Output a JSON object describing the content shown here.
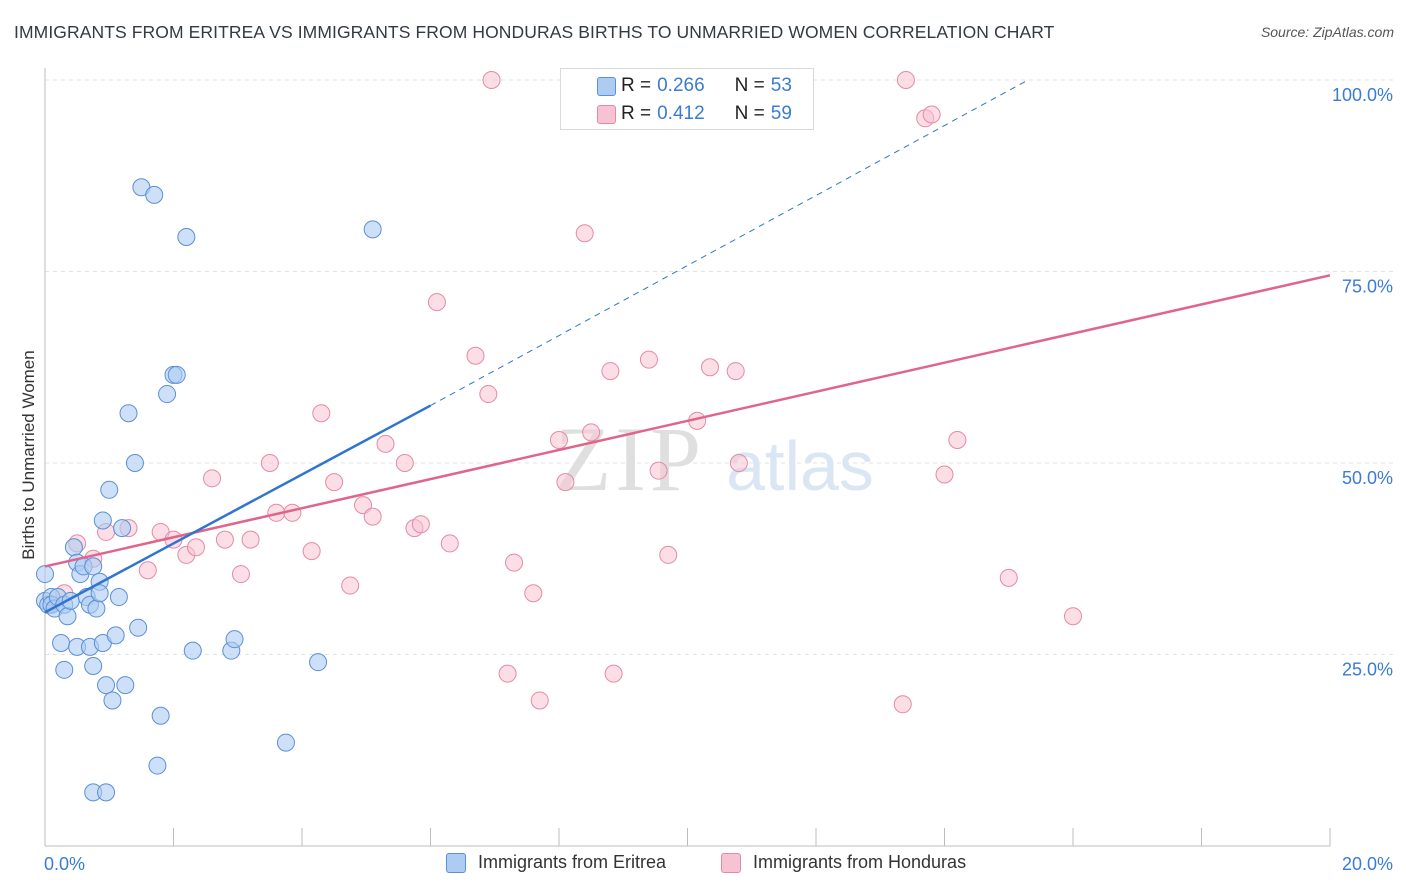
{
  "header": {
    "title": "IMMIGRANTS FROM ERITREA VS IMMIGRANTS FROM HONDURAS BIRTHS TO UNMARRIED WOMEN CORRELATION CHART",
    "source": "Source: ZipAtlas.com"
  },
  "watermark": {
    "zip": "ZIP",
    "atlas": "atlas"
  },
  "stats": [
    {
      "r_label": "R =",
      "r_value": "0.266",
      "n_label": "N =",
      "n_value": "53"
    },
    {
      "r_label": "R =",
      "r_value": "0.412",
      "n_label": "N =",
      "n_value": "59"
    }
  ],
  "colors": {
    "eritrea_fill": "#aecbf2",
    "eritrea_stroke": "#5b8fd6",
    "eritrea_line": "#2f74d0",
    "honduras_fill": "#f7c3d2",
    "honduras_stroke": "#e58aa6",
    "honduras_line": "#e0658d",
    "grid": "#e3e3e3",
    "axis_label": "#3a7bd5"
  },
  "chart_data": {
    "type": "scatter",
    "title": "IMMIGRANTS FROM ERITREA VS IMMIGRANTS FROM HONDURAS BIRTHS TO UNMARRIED WOMEN CORRELATION CHART",
    "xlabel": "",
    "ylabel": "Births to Unmarried Women",
    "xlim": [
      0,
      20
    ],
    "ylim": [
      0,
      100
    ],
    "x_tick_labels": [
      "0.0%",
      "20.0%"
    ],
    "y_ticks": [
      25,
      50,
      75,
      100
    ],
    "y_tick_labels": [
      "25.0%",
      "50.0%",
      "75.0%",
      "100.0%"
    ],
    "legend": [
      "Immigrants from Eritrea",
      "Immigrants from Honduras"
    ],
    "series": [
      {
        "name": "Immigrants from Eritrea",
        "R": 0.266,
        "N": 53,
        "trend": {
          "x0": 0.0,
          "y0": 30.5,
          "x1": 6.0,
          "y1": 57.5,
          "dashed_to_x": 15.3,
          "dashed_to_y": 100
        },
        "points": [
          [
            0.0,
            35.5
          ],
          [
            0.0,
            32.0
          ],
          [
            0.05,
            31.5
          ],
          [
            0.1,
            32.5
          ],
          [
            0.1,
            31.5
          ],
          [
            0.15,
            31.0
          ],
          [
            0.2,
            32.5
          ],
          [
            0.25,
            26.5
          ],
          [
            0.3,
            23.0
          ],
          [
            0.3,
            31.5
          ],
          [
            0.35,
            30.0
          ],
          [
            0.4,
            32.0
          ],
          [
            0.45,
            39.0
          ],
          [
            0.5,
            37.0
          ],
          [
            0.5,
            26.0
          ],
          [
            0.55,
            35.5
          ],
          [
            0.6,
            36.5
          ],
          [
            0.65,
            32.5
          ],
          [
            0.7,
            31.5
          ],
          [
            0.7,
            26.0
          ],
          [
            0.75,
            36.5
          ],
          [
            0.75,
            23.5
          ],
          [
            0.8,
            31.0
          ],
          [
            0.85,
            34.5
          ],
          [
            0.85,
            33.0
          ],
          [
            0.9,
            26.5
          ],
          [
            0.9,
            42.5
          ],
          [
            0.95,
            21.0
          ],
          [
            1.0,
            46.5
          ],
          [
            1.05,
            19.0
          ],
          [
            1.1,
            27.5
          ],
          [
            1.15,
            32.5
          ],
          [
            1.2,
            41.5
          ],
          [
            1.25,
            21.0
          ],
          [
            1.3,
            56.5
          ],
          [
            1.4,
            50.0
          ],
          [
            1.45,
            28.5
          ],
          [
            1.5,
            86.0
          ],
          [
            1.7,
            85.0
          ],
          [
            1.75,
            10.5
          ],
          [
            1.8,
            17.0
          ],
          [
            1.9,
            59.0
          ],
          [
            2.0,
            61.5
          ],
          [
            2.05,
            61.5
          ],
          [
            2.2,
            79.5
          ],
          [
            2.3,
            25.5
          ],
          [
            2.9,
            25.5
          ],
          [
            2.95,
            27.0
          ],
          [
            3.75,
            13.5
          ],
          [
            4.25,
            24.0
          ],
          [
            5.1,
            80.5
          ],
          [
            0.75,
            7.0
          ],
          [
            0.95,
            7.0
          ]
        ]
      },
      {
        "name": "Immigrants from Honduras",
        "R": 0.412,
        "N": 59,
        "trend": {
          "x0": 0.0,
          "y0": 36.5,
          "x1": 20.0,
          "y1": 74.5
        },
        "points": [
          [
            0.1,
            31.5
          ],
          [
            0.3,
            33.0
          ],
          [
            0.5,
            39.5
          ],
          [
            0.75,
            37.5
          ],
          [
            0.95,
            41.0
          ],
          [
            1.3,
            41.5
          ],
          [
            1.6,
            36.0
          ],
          [
            1.8,
            41.0
          ],
          [
            2.0,
            40.0
          ],
          [
            2.2,
            38.0
          ],
          [
            2.35,
            39.0
          ],
          [
            2.6,
            48.0
          ],
          [
            2.8,
            40.0
          ],
          [
            3.05,
            35.5
          ],
          [
            3.2,
            40.0
          ],
          [
            3.5,
            50.0
          ],
          [
            3.6,
            43.5
          ],
          [
            3.85,
            43.5
          ],
          [
            4.15,
            38.5
          ],
          [
            4.3,
            56.5
          ],
          [
            4.5,
            47.5
          ],
          [
            4.75,
            34.0
          ],
          [
            4.95,
            44.5
          ],
          [
            5.1,
            43.0
          ],
          [
            5.3,
            52.5
          ],
          [
            5.6,
            50.0
          ],
          [
            5.75,
            41.5
          ],
          [
            5.85,
            42.0
          ],
          [
            6.1,
            71.0
          ],
          [
            6.3,
            39.5
          ],
          [
            6.7,
            64.0
          ],
          [
            6.9,
            59.0
          ],
          [
            6.95,
            100.0
          ],
          [
            7.2,
            22.5
          ],
          [
            7.3,
            37.0
          ],
          [
            7.6,
            33.0
          ],
          [
            7.7,
            19.0
          ],
          [
            8.0,
            53.0
          ],
          [
            8.1,
            47.5
          ],
          [
            8.4,
            80.0
          ],
          [
            8.5,
            54.0
          ],
          [
            8.8,
            62.0
          ],
          [
            8.85,
            22.5
          ],
          [
            9.4,
            63.5
          ],
          [
            9.55,
            49.0
          ],
          [
            9.7,
            38.0
          ],
          [
            10.15,
            55.5
          ],
          [
            10.35,
            62.5
          ],
          [
            10.75,
            62.0
          ],
          [
            10.8,
            50.0
          ],
          [
            11.0,
            100.0
          ],
          [
            13.4,
            100.0
          ],
          [
            13.7,
            95.0
          ],
          [
            14.0,
            48.5
          ],
          [
            14.2,
            53.0
          ],
          [
            15.0,
            35.0
          ],
          [
            16.0,
            30.0
          ],
          [
            13.35,
            18.5
          ],
          [
            13.8,
            95.5
          ]
        ]
      }
    ]
  }
}
